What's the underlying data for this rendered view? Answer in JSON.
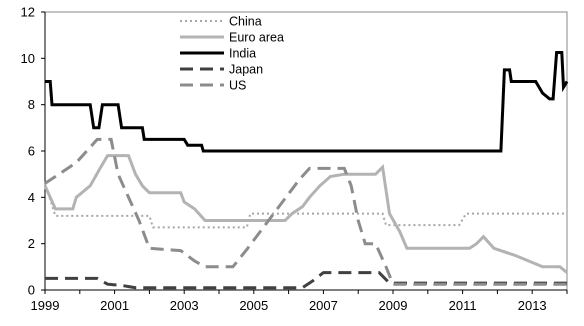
{
  "chart_data": {
    "type": "line",
    "title": "",
    "xlabel": "",
    "ylabel": "",
    "xlim": [
      1999,
      2014
    ],
    "ylim": [
      0,
      12
    ],
    "x_ticks": [
      1999,
      2001,
      2003,
      2005,
      2007,
      2009,
      2011,
      2013
    ],
    "y_ticks": [
      0,
      2,
      4,
      6,
      8,
      10,
      12
    ],
    "grid": false,
    "legend_position": "top-center",
    "series": [
      {
        "name": "China",
        "color": "#a6a6a6",
        "style": "dotted",
        "width": 2,
        "points": [
          [
            1999.0,
            4.6
          ],
          [
            1999.3,
            3.2
          ],
          [
            2002.0,
            3.2
          ],
          [
            2002.1,
            2.7
          ],
          [
            2004.8,
            2.7
          ],
          [
            2004.9,
            3.3
          ],
          [
            2008.7,
            3.3
          ],
          [
            2008.8,
            2.8
          ],
          [
            2010.9,
            2.8
          ],
          [
            2011.1,
            3.3
          ],
          [
            2014.0,
            3.3
          ]
        ]
      },
      {
        "name": "Euro area",
        "color": "#b3b3b3",
        "style": "solid",
        "width": 3,
        "points": [
          [
            1999.0,
            4.5
          ],
          [
            1999.3,
            3.5
          ],
          [
            1999.8,
            3.5
          ],
          [
            1999.9,
            4.0
          ],
          [
            2000.3,
            4.5
          ],
          [
            2000.6,
            5.3
          ],
          [
            2000.8,
            5.8
          ],
          [
            2001.4,
            5.8
          ],
          [
            2001.6,
            5.0
          ],
          [
            2001.8,
            4.5
          ],
          [
            2002.0,
            4.2
          ],
          [
            2002.9,
            4.2
          ],
          [
            2003.0,
            3.8
          ],
          [
            2003.3,
            3.5
          ],
          [
            2003.6,
            3.0
          ],
          [
            2005.9,
            3.0
          ],
          [
            2006.1,
            3.3
          ],
          [
            2006.4,
            3.6
          ],
          [
            2006.6,
            4.0
          ],
          [
            2006.9,
            4.5
          ],
          [
            2007.2,
            4.9
          ],
          [
            2007.6,
            5.0
          ],
          [
            2008.5,
            5.0
          ],
          [
            2008.7,
            5.3
          ],
          [
            2008.9,
            3.3
          ],
          [
            2009.2,
            2.5
          ],
          [
            2009.4,
            1.8
          ],
          [
            2011.2,
            1.8
          ],
          [
            2011.4,
            2.0
          ],
          [
            2011.6,
            2.3
          ],
          [
            2011.9,
            1.8
          ],
          [
            2012.5,
            1.5
          ],
          [
            2013.3,
            1.0
          ],
          [
            2013.8,
            1.0
          ],
          [
            2014.0,
            0.75
          ]
        ]
      },
      {
        "name": "India",
        "color": "#000000",
        "style": "solid",
        "width": 3,
        "points": [
          [
            1999.0,
            9.0
          ],
          [
            1999.15,
            9.0
          ],
          [
            1999.2,
            8.0
          ],
          [
            2000.3,
            8.0
          ],
          [
            2000.4,
            7.0
          ],
          [
            2000.55,
            7.0
          ],
          [
            2000.65,
            8.0
          ],
          [
            2001.1,
            8.0
          ],
          [
            2001.2,
            7.0
          ],
          [
            2001.8,
            7.0
          ],
          [
            2001.85,
            6.5
          ],
          [
            2003.0,
            6.5
          ],
          [
            2003.1,
            6.25
          ],
          [
            2003.5,
            6.25
          ],
          [
            2003.55,
            6.0
          ],
          [
            2012.1,
            6.0
          ],
          [
            2012.2,
            9.5
          ],
          [
            2012.35,
            9.5
          ],
          [
            2012.4,
            9.0
          ],
          [
            2013.1,
            9.0
          ],
          [
            2013.3,
            8.5
          ],
          [
            2013.5,
            8.25
          ],
          [
            2013.6,
            8.25
          ],
          [
            2013.7,
            10.25
          ],
          [
            2013.85,
            10.25
          ],
          [
            2013.9,
            8.75
          ],
          [
            2014.0,
            9.0
          ]
        ]
      },
      {
        "name": "Japan",
        "color": "#404040",
        "style": "dashed",
        "width": 3,
        "points": [
          [
            1999.0,
            0.5
          ],
          [
            2000.5,
            0.5
          ],
          [
            2000.8,
            0.25
          ],
          [
            2001.2,
            0.2
          ],
          [
            2001.6,
            0.1
          ],
          [
            2006.4,
            0.1
          ],
          [
            2006.7,
            0.4
          ],
          [
            2007.0,
            0.75
          ],
          [
            2008.6,
            0.75
          ],
          [
            2008.9,
            0.3
          ],
          [
            2014.0,
            0.3
          ]
        ]
      },
      {
        "name": "US",
        "color": "#8c8c8c",
        "style": "dashed",
        "width": 3,
        "points": [
          [
            1999.0,
            4.6
          ],
          [
            1999.4,
            5.0
          ],
          [
            1999.9,
            5.5
          ],
          [
            2000.2,
            6.0
          ],
          [
            2000.5,
            6.5
          ],
          [
            2000.9,
            6.5
          ],
          [
            2001.1,
            5.0
          ],
          [
            2001.4,
            4.0
          ],
          [
            2001.7,
            3.0
          ],
          [
            2002.0,
            1.8
          ],
          [
            2002.9,
            1.7
          ],
          [
            2003.3,
            1.25
          ],
          [
            2003.6,
            1.0
          ],
          [
            2004.4,
            1.0
          ],
          [
            2004.8,
            1.75
          ],
          [
            2005.3,
            2.75
          ],
          [
            2005.8,
            3.75
          ],
          [
            2006.3,
            4.75
          ],
          [
            2006.6,
            5.25
          ],
          [
            2007.6,
            5.25
          ],
          [
            2007.8,
            4.5
          ],
          [
            2008.0,
            3.0
          ],
          [
            2008.2,
            2.0
          ],
          [
            2008.5,
            2.0
          ],
          [
            2008.8,
            1.0
          ],
          [
            2009.0,
            0.25
          ],
          [
            2014.0,
            0.25
          ]
        ]
      }
    ]
  }
}
